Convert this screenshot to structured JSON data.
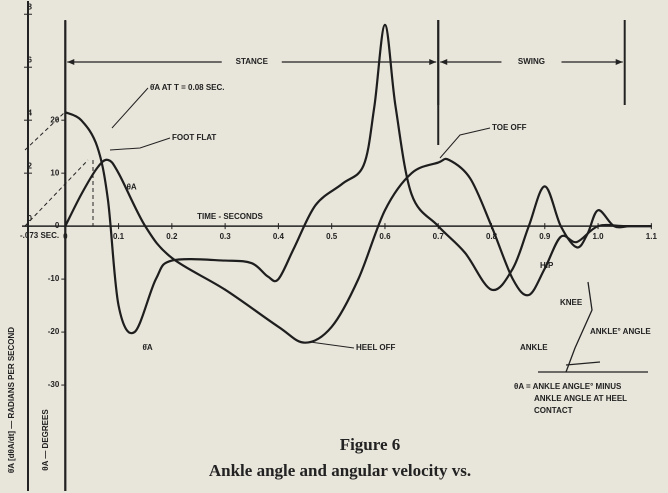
{
  "chart_data": {
    "type": "line",
    "title": "Figure 6",
    "subtitle": "Ankle angle and angular velocity vs.",
    "x_label": "TIME - SECONDS",
    "y_label": "θ̇A [dθA/dt] — RADIANS PER SECOND",
    "y2_label": "θA — DEGREES",
    "xlim": [
      -0.07,
      1.12
    ],
    "xticks": [
      0,
      0.1,
      0.2,
      0.3,
      0.4,
      0.5,
      0.6,
      0.7,
      0.8,
      0.9,
      {
        "value": 1,
        "label": "1.0"
      },
      1.1
    ],
    "ylim": [
      -10,
      8.5
    ],
    "yticks": [
      0,
      2,
      4,
      6,
      8
    ],
    "y2lim": [
      -50,
      42.5
    ],
    "y2ticks": [
      -30,
      -20,
      -10,
      0,
      10,
      20
    ],
    "grid": false,
    "series": [
      {
        "name": "θ̇A",
        "color": "#1e1e1e",
        "x": [
          0,
          0.03,
          0.06,
          0.08,
          0.1,
          0.13,
          0.17,
          0.2,
          0.3,
          0.35,
          0.38,
          0.4,
          0.43,
          0.47,
          0.52,
          0.56,
          0.58,
          0.6,
          0.62,
          0.65,
          0.7,
          0.75,
          0.8,
          0.84,
          0.87,
          0.9,
          0.93,
          0.96,
          0.98,
          1.0,
          1.03,
          1.06,
          1.1
        ],
        "values": [
          4.3,
          4.0,
          3.0,
          1.0,
          -3.0,
          -4.0,
          -2.0,
          -1.3,
          -1.3,
          -1.4,
          -1.9,
          -2.0,
          -0.8,
          0.8,
          1.6,
          2.3,
          4.5,
          7.6,
          4.5,
          1.2,
          0,
          -1,
          -2.4,
          -1.6,
          0,
          1.5,
          0,
          -0.8,
          -0.3,
          0.6,
          0,
          0,
          0
        ]
      },
      {
        "name": "θA",
        "color": "#1e1e1e",
        "axis": "y2",
        "x": [
          0,
          0.03,
          0.06,
          0.08,
          0.1,
          0.15,
          0.2,
          0.3,
          0.4,
          0.45,
          0.5,
          0.55,
          0.6,
          0.65,
          0.7,
          0.72,
          0.76,
          0.8,
          0.84,
          0.87,
          0.9,
          0.93,
          0.96,
          1.0,
          1.05,
          1.1
        ],
        "values": [
          0,
          6,
          11,
          12.5,
          10,
          0,
          -6,
          -12,
          -19,
          -22,
          -19,
          -10,
          3,
          10,
          12,
          12.5,
          9,
          0,
          -10,
          -13,
          -8,
          -2,
          -3,
          0,
          0,
          0
        ]
      }
    ],
    "phases": [
      {
        "label": "STANCE",
        "start": 0,
        "end": 0.7
      },
      {
        "label": "SWING",
        "start": 0.7,
        "end": 1.05
      }
    ],
    "annotations": {
      "velocity_time": "θ̇A AT T = 0.08 SEC.",
      "foot_flat": "FOOT FLAT",
      "toe_off": "TOE OFF",
      "heel_off": "HEEL OFF",
      "offset": "-.073 SEC.",
      "hip": "HIP",
      "knee": "KNEE",
      "ankle": "ANKLE",
      "ankle_angle": "ANKLE° ANGLE",
      "definition_1": "θA = ANKLE ANGLE° MINUS",
      "definition_2": "ANKLE ANGLE AT HEEL",
      "definition_3": "CONTACT"
    }
  }
}
